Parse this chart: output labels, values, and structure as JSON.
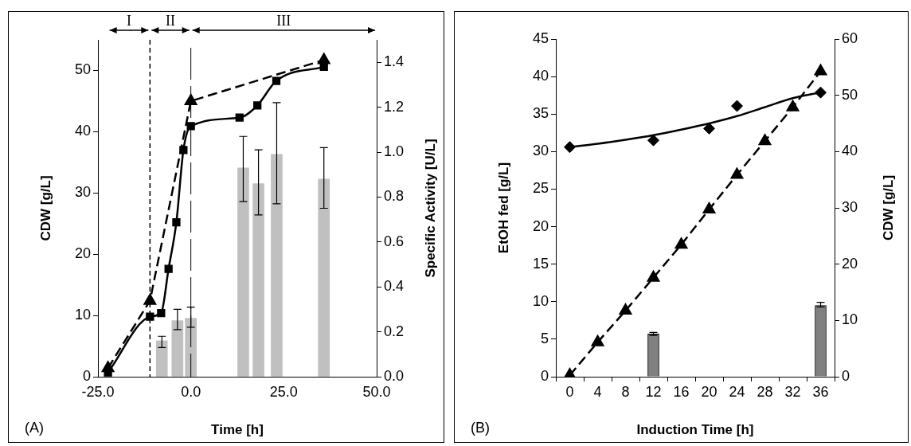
{
  "chart_data": [
    {
      "type": "line",
      "xlabel": "Time [h]",
      "ylabel": "CDW [g/L]",
      "y2label": "Specific Activity [U/L]",
      "xlim": [
        -25,
        50
      ],
      "xticks": [
        {
          "value": -25,
          "label": "-25.0"
        },
        {
          "value": 0,
          "label": "0.0"
        },
        {
          "value": 25,
          "label": "25.0"
        },
        {
          "value": 50,
          "label": "50.0"
        }
      ],
      "ylim": [
        0,
        55
      ],
      "yticks": [
        0,
        10,
        20,
        30,
        40,
        50
      ],
      "y2lim": [
        0,
        1.5
      ],
      "y2ticks": [
        {
          "value": 0,
          "label": "0.0"
        },
        {
          "value": 0.2,
          "label": "0.2"
        },
        {
          "value": 0.4,
          "label": "0.4"
        },
        {
          "value": 0.6,
          "label": "0.6"
        },
        {
          "value": 0.8,
          "label": "0.8"
        },
        {
          "value": 1,
          "label": "1.0"
        },
        {
          "value": 1.2,
          "label": "1.2"
        },
        {
          "value": 1.4,
          "label": "1.4"
        }
      ],
      "grid": false,
      "legend": false,
      "series": [
        {
          "type": "bar",
          "axis": "y2",
          "color": "#c0c0c0",
          "x": [
            -7.8,
            -3.6,
            0,
            14.1,
            18.2,
            23.1,
            35.8
          ],
          "values": [
            0.16,
            0.25,
            0.26,
            0.93,
            0.86,
            0.99,
            0.88
          ],
          "errors": [
            [
              0.13,
              0.18
            ],
            [
              0.21,
              0.3
            ],
            [
              0.22,
              0.31
            ],
            [
              0.78,
              1.07
            ],
            [
              0.72,
              1.01
            ],
            [
              0.77,
              1.22
            ],
            [
              0.75,
              1.02
            ]
          ]
        },
        {
          "color": "#000000",
          "marker": "square",
          "line_style": "solid",
          "x": [
            -22.3,
            -11,
            -8,
            -6,
            -3.9,
            -2,
            0,
            13.1,
            17.9,
            23,
            35.8
          ],
          "values": [
            0.7,
            9.8,
            10.4,
            17.6,
            25.2,
            37,
            40.9,
            42.3,
            44.3,
            48.3,
            50.6
          ]
        },
        {
          "color": "#000000",
          "marker": "triangle",
          "line_style": "dashed",
          "x": [
            -22.3,
            -11,
            0,
            35.8
          ],
          "values": [
            1.4,
            12.4,
            45,
            51.7
          ]
        }
      ],
      "ref_lines": [
        {
          "axis": "x",
          "value": -11,
          "line_style": "dashed"
        },
        {
          "axis": "x",
          "value": 0,
          "line_style": "dashed"
        }
      ],
      "annotations": [
        "I",
        "II",
        "III",
        "(A)"
      ]
    },
    {
      "type": "line",
      "xlabel": "Induction Time [h]",
      "ylabel": "EtOH fed [g/L]",
      "y2label": "CDW [g/L]",
      "xlim": [
        -2,
        38
      ],
      "xticks": [
        {
          "value": -2,
          "label": null
        },
        0,
        {
          "value": 2,
          "label": null
        },
        4,
        {
          "value": 6,
          "label": null
        },
        8,
        {
          "value": 10,
          "label": null
        },
        12,
        {
          "value": 14,
          "label": null
        },
        16,
        {
          "value": 18,
          "label": null
        },
        20,
        {
          "value": 22,
          "label": null
        },
        24,
        {
          "value": 26,
          "label": null
        },
        28,
        {
          "value": 30,
          "label": null
        },
        32,
        {
          "value": 34,
          "label": null
        },
        36,
        {
          "value": 38,
          "label": null
        }
      ],
      "ylim": [
        0,
        45
      ],
      "yticks": [
        0,
        5,
        10,
        15,
        20,
        25,
        30,
        35,
        40,
        45
      ],
      "y2lim": [
        0,
        60
      ],
      "y2ticks": [
        0,
        10,
        20,
        30,
        40,
        50,
        60
      ],
      "grid": false,
      "legend": false,
      "series": [
        {
          "type": "bar",
          "color": "#808080",
          "x": [
            12,
            36
          ],
          "values": [
            5.7,
            9.5
          ],
          "errors": [
            [
              5.5,
              5.9
            ],
            [
              9.3,
              9.9
            ]
          ]
        },
        {
          "color": "#000000",
          "marker": "triangle",
          "line_style": "dashed",
          "x": [
            0,
            4,
            8,
            12,
            16,
            20,
            24,
            28,
            32,
            36
          ],
          "values": [
            0.2,
            4.6,
            8.8,
            13.2,
            17.6,
            22.3,
            26.9,
            31.4,
            35.9,
            40.7
          ]
        },
        {
          "axis": "y2",
          "color": "#000000",
          "marker": "none",
          "line_style": "solid",
          "x": [
            0,
            4,
            8,
            12,
            16,
            20,
            24,
            28,
            32,
            36
          ],
          "values": [
            40.8,
            41.4,
            42.1,
            42.9,
            43.9,
            45,
            46.3,
            47.9,
            49.5,
            50.5
          ]
        },
        {
          "type": "scatter",
          "axis": "y2",
          "color": "#000000",
          "marker": "diamond",
          "x": [
            0,
            12,
            20,
            24,
            36
          ],
          "values": [
            40.8,
            42,
            44.1,
            48.1,
            50.5
          ]
        }
      ],
      "annotations": [
        "(B)"
      ]
    }
  ]
}
